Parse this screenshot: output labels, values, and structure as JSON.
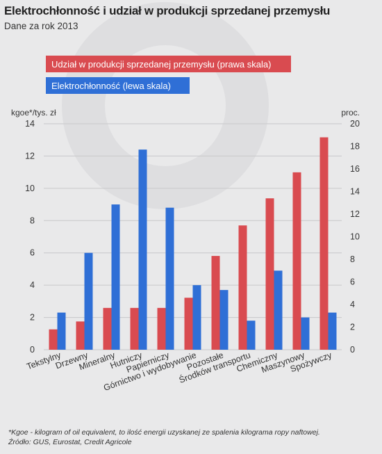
{
  "header": {
    "title": "Elektrochłonność i udział w produkcji sprzedanej przemysłu",
    "subtitle": "Dane za rok 2013"
  },
  "footnote": {
    "line1": "*Kgoe -  kilogram of oil equivalent, to ilość energii uzyskanej ze spalenia kilograma ropy naftowej.",
    "line2": "Źródło: GUS, Eurostat, Credit Agricole"
  },
  "colors": {
    "red": "#d94b50",
    "blue": "#2f6fd6",
    "background": "#e9e9ea",
    "watermark": "#dedee0"
  },
  "chart_data": {
    "type": "bar",
    "categories": [
      "Tekstylny",
      "Drzewny",
      "Mineralny",
      "Hutniczy",
      "Papierniczy",
      "Górnictwo i wydobywanie",
      "Pozostałe",
      "Środków transportu",
      "Chemiczny",
      "Maszynowy",
      "Spożywczy"
    ],
    "series": [
      {
        "name": "Udział w produkcji sprzedanej przemysłu (prawa skala)",
        "axis": "right",
        "color": "#d94b50",
        "values": [
          1.8,
          2.5,
          3.7,
          3.7,
          3.7,
          4.6,
          8.3,
          11.0,
          13.4,
          15.7,
          18.8
        ]
      },
      {
        "name": "Elektrochłonność  (lewa skala)",
        "axis": "left",
        "color": "#2f6fd6",
        "values": [
          2.3,
          6.0,
          9.0,
          12.4,
          8.8,
          4.0,
          3.7,
          1.8,
          4.9,
          2.0,
          2.3
        ]
      }
    ],
    "ylabel_left": "kgoe*/tys. zł",
    "ylabel_right": "proc.",
    "ylim_left": [
      0,
      14
    ],
    "ylim_right": [
      0,
      20
    ],
    "yticks_left": [
      "0",
      "2",
      "4",
      "6",
      "8",
      "10",
      "12",
      "14"
    ],
    "yticks_right": [
      "0",
      "2",
      "4",
      "6",
      "8",
      "10",
      "12",
      "14",
      "16",
      "18",
      "20"
    ],
    "grid": true,
    "legend_position": "top-left"
  }
}
